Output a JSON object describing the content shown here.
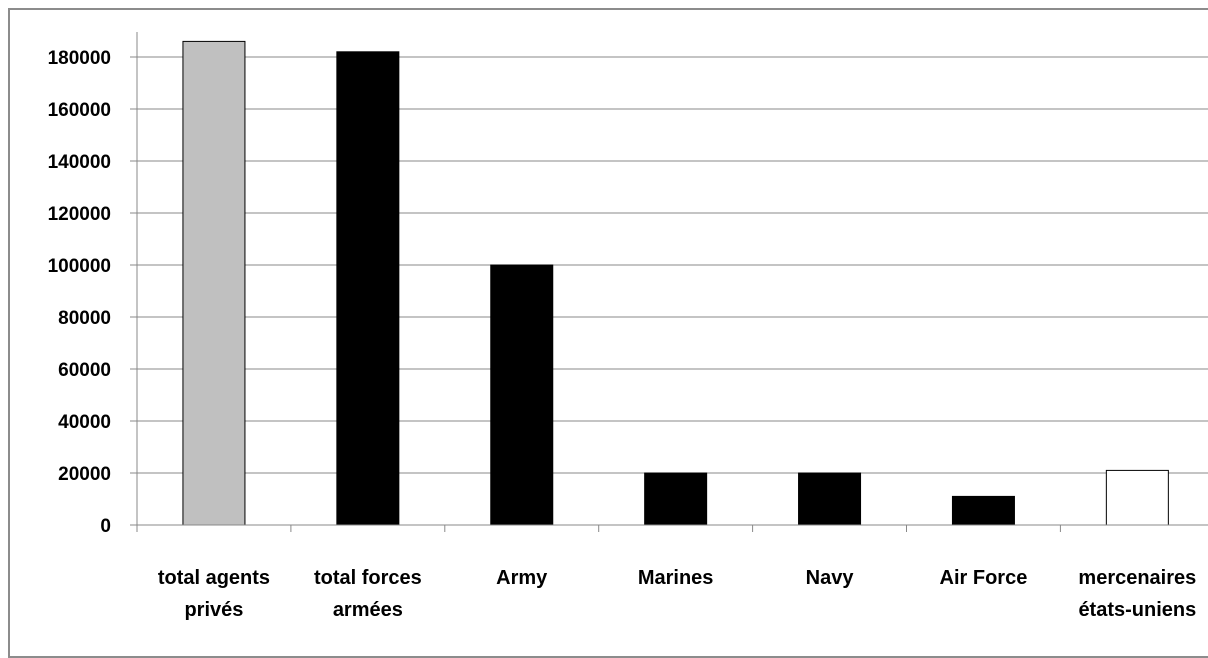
{
  "chart_data": {
    "type": "bar",
    "title": "",
    "xlabel": "",
    "ylabel": "",
    "ylim": [
      0,
      180000
    ],
    "yticks": [
      0,
      20000,
      40000,
      60000,
      80000,
      100000,
      120000,
      140000,
      160000,
      180000
    ],
    "grid": true,
    "categories": [
      "total agents privés",
      "total forces armées",
      "Army",
      "Marines",
      "Navy",
      "Air Force",
      "mercenaires états-uniens"
    ],
    "category_lines": [
      [
        "total agents",
        "privés"
      ],
      [
        "total forces",
        "armées"
      ],
      [
        "Army"
      ],
      [
        "Marines"
      ],
      [
        "Navy"
      ],
      [
        "Air Force"
      ],
      [
        "mercenaires",
        "états-uniens"
      ]
    ],
    "values": [
      186000,
      182000,
      100000,
      20000,
      20000,
      11000,
      21000
    ],
    "colors": [
      "#c0c0c0",
      "#000000",
      "#000000",
      "#000000",
      "#000000",
      "#000000",
      "#ffffff"
    ]
  }
}
